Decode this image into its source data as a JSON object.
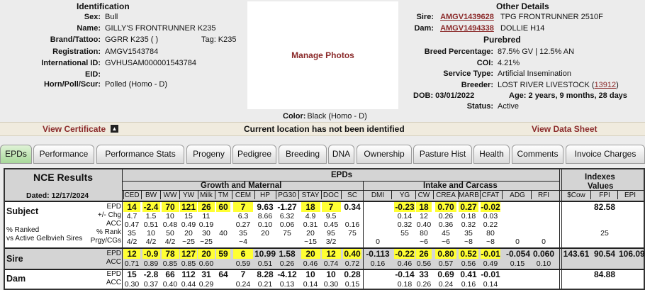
{
  "identification": {
    "title": "Identification",
    "fields": [
      {
        "label": "Sex:",
        "value": "Bull"
      },
      {
        "label": "Name:",
        "value": "GILLY'S FRONTRUNNER K235"
      },
      {
        "label": "Brand/Tattoo:",
        "value": "GGRR K235 ( )"
      },
      {
        "label": "Registration:",
        "value": "AMGV1543784"
      },
      {
        "label": "International ID:",
        "value": "GVHUSAM000001543784"
      },
      {
        "label": "EID:",
        "value": ""
      },
      {
        "label": "Horn/Poll/Scur:",
        "value": "Polled (Homo - D)"
      }
    ],
    "tag_label": "Tag:",
    "tag_value": "K235"
  },
  "photo": {
    "manage_label": "Manage Photos",
    "color_label": "Color:",
    "color_value": "Black (Homo - D)"
  },
  "other": {
    "title": "Other Details",
    "sire_label": "Sire:",
    "sire_link": "AMGV1439628",
    "sire_name": "TPG FRONTRUNNER 2510F",
    "dam_label": "Dam:",
    "dam_link": "AMGV1494338",
    "dam_name": "DOLLIE H14",
    "purebred": "Purebred",
    "fields": [
      {
        "label": "Breed Percentage:",
        "value": "87.5% GV | 12.5% AN"
      },
      {
        "label": "COI:",
        "value": "4.21%"
      },
      {
        "label": "Service Type:",
        "value": "Artificial Insemination"
      }
    ],
    "breeder_label": "Breeder:",
    "breeder_value": "LOST RIVER LIVESTOCK (",
    "breeder_link": "13912",
    "breeder_close": ")",
    "dob_label": "DOB:",
    "dob_value": "03/01/2022",
    "age_label": "Age:",
    "age_value": "2 years, 9 months, 28 days",
    "status_label": "Status:",
    "status_value": "Active"
  },
  "actions": {
    "certificate": "View Certificate",
    "location": "Current location has not been identified",
    "datasheet": "View Data Sheet"
  },
  "tabs": [
    "EPDs",
    "Performance",
    "Performance Stats",
    "Progeny",
    "Pedigree",
    "Breeding",
    "DNA",
    "Ownership",
    "Pasture Hist",
    "Health",
    "Comments",
    "Invoice Charges"
  ],
  "epd": {
    "nce_title": "NCE Results",
    "dated": "Dated: 12/17/2024",
    "epds_title": "EPDs",
    "growth_title": "Growth and Maternal",
    "intake_title": "Intake and Carcass",
    "indexes_title_1": "Indexes",
    "indexes_title_2": "Values",
    "columns": [
      "CED",
      "BW",
      "WW",
      "YW",
      "Milk",
      "TM",
      "CEM",
      "HP",
      "PG30",
      "STAY",
      "DOC",
      "SC",
      "DMI",
      "YG",
      "CW",
      "CREA",
      "MARB",
      "CFAT",
      "ADG",
      "RFI",
      "$Cow",
      "FPI",
      "EPI"
    ],
    "row_labels": {
      "subject": "Subject",
      "sire": "Sire",
      "dam": "Dam",
      "ranked_1": "% Ranked",
      "ranked_2": "vs Active Gelbvieh Sires",
      "epd": "EPD",
      "chg": "+/- Chg",
      "acc": "ACC",
      "rank": "% Rank",
      "prgy": "Prgy/CGs"
    },
    "subject": {
      "epd": [
        "14",
        "-2.4",
        "70",
        "121",
        "26",
        "60",
        "7",
        "9.63",
        "-1.27",
        "18",
        "7",
        "0.34",
        "",
        "-0.23",
        "18",
        "0.70",
        "0.27",
        "-0.02",
        "",
        "",
        "",
        "82.58",
        ""
      ],
      "chg": [
        "4.7",
        "1.5",
        "10",
        "15",
        "11",
        "",
        "6.3",
        "8.66",
        "6.32",
        "4.9",
        "9.5",
        "",
        "",
        "0.14",
        "12",
        "0.26",
        "0.18",
        "0.03",
        "",
        "",
        "",
        "",
        ""
      ],
      "acc": [
        "0.47",
        "0.51",
        "0.48",
        "0.49",
        "0.19",
        "",
        "0.27",
        "0.10",
        "0.06",
        "0.31",
        "0.45",
        "0.16",
        "",
        "0.32",
        "0.40",
        "0.36",
        "0.32",
        "0.22",
        "",
        "",
        "",
        "",
        ""
      ],
      "rank": [
        "35",
        "10",
        "50",
        "20",
        "30",
        "40",
        "35",
        "20",
        "75",
        "20",
        "95",
        "75",
        "",
        "55",
        "80",
        "45",
        "35",
        "80",
        "",
        "",
        "",
        "25",
        ""
      ],
      "prgy": [
        "4/2",
        "4/2",
        "4/2",
        "~25",
        "~25",
        "",
        "~4",
        "",
        "",
        "~15",
        "3/2",
        "",
        "0",
        "",
        "~6",
        "~6",
        "~8",
        "~8",
        "0",
        "0",
        "",
        "",
        ""
      ]
    },
    "sire": {
      "epd": [
        "12",
        "-0.9",
        "78",
        "127",
        "20",
        "59",
        "6",
        "10.99",
        "1.58",
        "20",
        "12",
        "0.40",
        "-0.113",
        "-0.22",
        "26",
        "0.80",
        "0.52",
        "-0.01",
        "-0.054",
        "0.060",
        "143.61",
        "90.54",
        "106.09"
      ],
      "acc": [
        "0.71",
        "0.89",
        "0.85",
        "0.85",
        "0.60",
        "",
        "0.59",
        "0.51",
        "0.26",
        "0.46",
        "0.74",
        "0.72",
        "0.16",
        "0.46",
        "0.56",
        "0.57",
        "0.56",
        "0.49",
        "0.15",
        "0.10",
        "",
        "",
        ""
      ]
    },
    "dam": {
      "epd": [
        "15",
        "-2.8",
        "66",
        "112",
        "31",
        "64",
        "7",
        "8.28",
        "-4.12",
        "10",
        "10",
        "0.28",
        "",
        "-0.14",
        "33",
        "0.69",
        "0.41",
        "-0.01",
        "",
        "",
        "",
        "84.88",
        ""
      ],
      "acc": [
        "0.30",
        "0.37",
        "0.40",
        "0.44",
        "0.29",
        "",
        "0.24",
        "0.21",
        "0.13",
        "0.14",
        "0.30",
        "0.15",
        "",
        "0.18",
        "0.26",
        "0.24",
        "0.16",
        "0.14",
        "",
        "",
        "",
        "",
        ""
      ]
    },
    "highlights": {
      "subject": [
        0,
        1,
        2,
        3,
        4,
        5,
        6,
        9,
        10,
        13,
        14,
        15,
        16,
        17
      ],
      "sire": [
        0,
        1,
        2,
        3,
        4,
        5,
        6,
        9,
        10,
        11,
        13,
        14,
        15,
        16,
        17
      ]
    }
  }
}
